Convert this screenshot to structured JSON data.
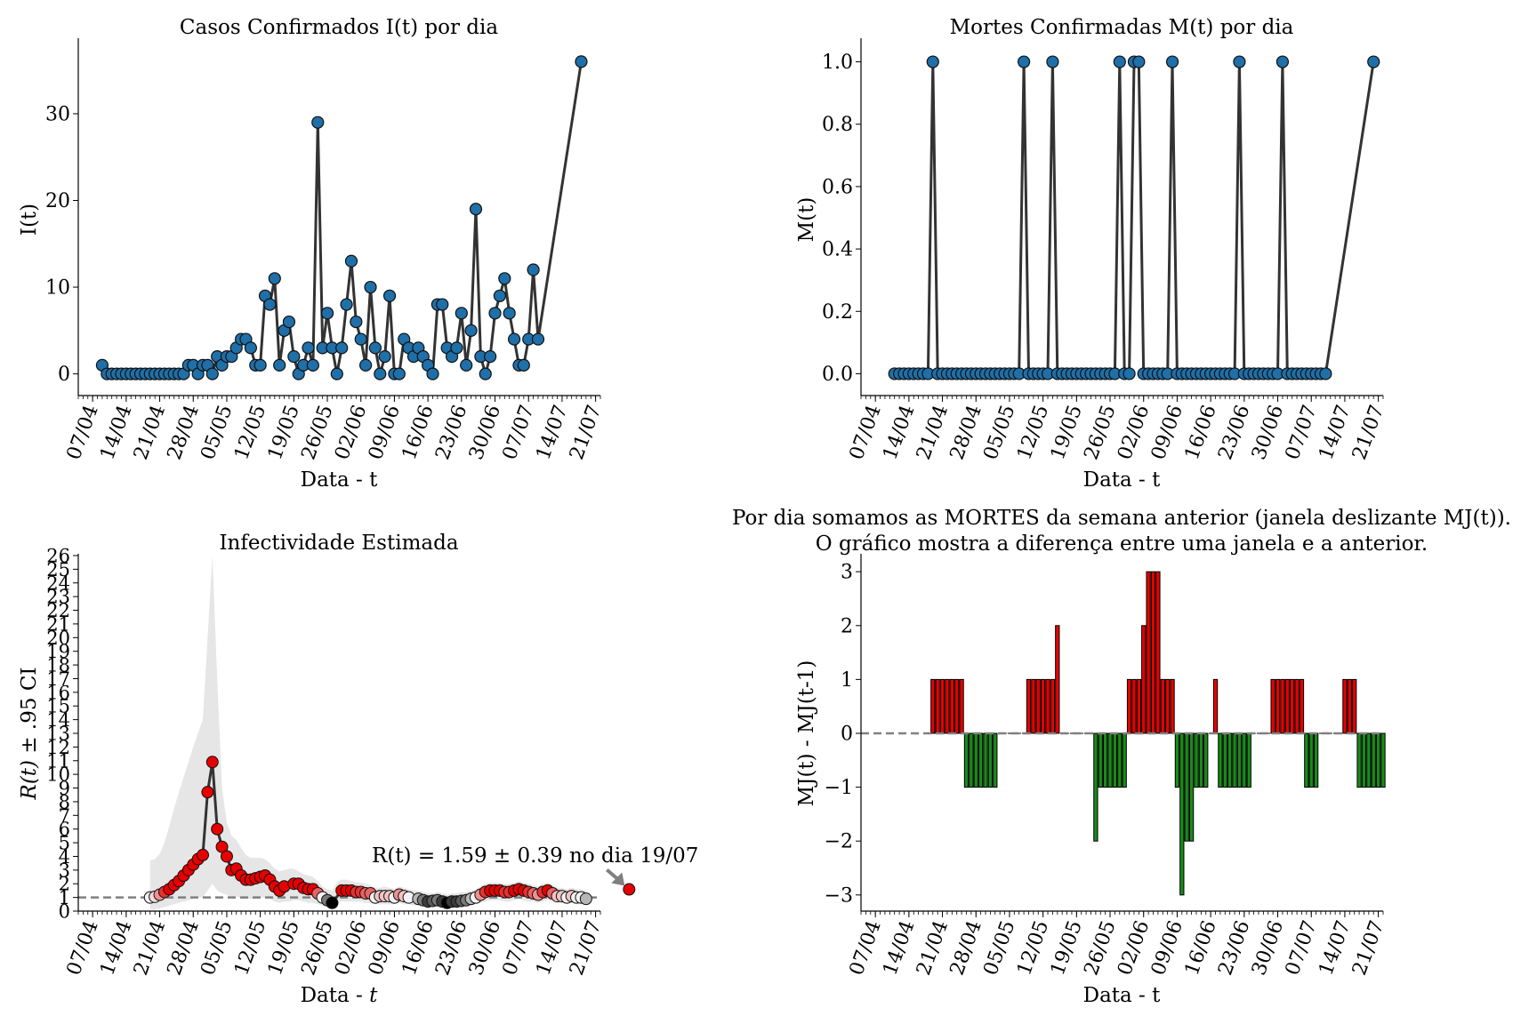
{
  "chart_data": [
    {
      "id": "cases",
      "type": "line",
      "title": "Casos Confirmados I(t) por dia",
      "xlabel": "Data - t",
      "ylabel": "I(t)",
      "x_ticks": [
        "07/04",
        "14/04",
        "21/04",
        "28/04",
        "05/05",
        "12/05",
        "19/05",
        "26/05",
        "02/06",
        "09/06",
        "16/06",
        "23/06",
        "30/06",
        "07/07",
        "14/07",
        "21/07"
      ],
      "x_start": "2020-04-09",
      "x_end": "2020-07-19",
      "y_ticks": [
        0,
        10,
        20,
        30
      ],
      "ylim": [
        -2.5,
        38.5
      ],
      "series": [
        {
          "color": "#1f6fa8",
          "values": [
            1,
            0,
            0,
            0,
            0,
            0,
            0,
            0,
            0,
            0,
            0,
            0,
            0,
            0,
            0,
            0,
            0,
            0,
            1,
            1,
            0,
            1,
            1,
            0,
            2,
            1,
            2,
            2,
            3,
            4,
            4,
            3,
            1,
            1,
            9,
            8,
            11,
            1,
            5,
            6,
            2,
            0,
            1,
            3,
            1,
            29,
            3,
            7,
            3,
            0,
            3,
            8,
            13,
            6,
            4,
            1,
            10,
            3,
            0,
            2,
            9,
            0,
            0,
            4,
            3,
            2,
            3,
            2,
            1,
            0,
            8,
            8,
            3,
            2,
            3,
            7,
            1,
            5,
            19,
            2,
            0,
            2,
            7,
            9,
            11,
            7,
            4,
            1,
            1,
            4,
            12,
            4,
            null,
            null,
            null,
            null,
            null,
            null,
            null,
            null,
            36
          ]
        }
      ]
    },
    {
      "id": "deaths",
      "type": "line",
      "title": "Mortes Confirmadas M(t) por dia",
      "xlabel": "Data - t",
      "ylabel": "M(t)",
      "x_ticks": [
        "07/04",
        "14/04",
        "21/04",
        "28/04",
        "05/05",
        "12/05",
        "19/05",
        "26/05",
        "02/06",
        "09/06",
        "16/06",
        "23/06",
        "30/06",
        "07/07",
        "14/07",
        "21/07"
      ],
      "x_start": "2020-04-11",
      "x_end": "2020-07-19",
      "y_ticks": [
        "0.0",
        "0.2",
        "0.4",
        "0.6",
        "0.8",
        "1.0"
      ],
      "ylim": [
        -0.07,
        1.07
      ],
      "series": [
        {
          "color": "#1f6fa8",
          "values": [
            0,
            0,
            0,
            0,
            0,
            0,
            0,
            0,
            1,
            0,
            0,
            0,
            0,
            0,
            0,
            0,
            0,
            0,
            0,
            0,
            0,
            0,
            0,
            0,
            0,
            0,
            0,
            1,
            0,
            0,
            0,
            0,
            0,
            1,
            0,
            0,
            0,
            0,
            0,
            0,
            0,
            0,
            0,
            0,
            0,
            0,
            0,
            1,
            0,
            0,
            1,
            1,
            0,
            0,
            0,
            0,
            0,
            0,
            1,
            0,
            0,
            0,
            0,
            0,
            0,
            0,
            0,
            0,
            0,
            0,
            0,
            0,
            1,
            0,
            0,
            0,
            0,
            0,
            0,
            0,
            0,
            1,
            0,
            0,
            0,
            0,
            0,
            0,
            0,
            0,
            0,
            null,
            null,
            null,
            null,
            null,
            null,
            null,
            null,
            null,
            1
          ]
        }
      ]
    },
    {
      "id": "rt",
      "type": "scatter",
      "title": "Infectividade Estimada",
      "xlabel": "Data - ",
      "xlabel_italic": "t",
      "ylabel_math": "R(t)",
      "ylabel_rest": " ± .95 CI",
      "x_ticks": [
        "07/04",
        "14/04",
        "21/04",
        "28/04",
        "05/05",
        "12/05",
        "19/05",
        "26/05",
        "02/06",
        "09/06",
        "16/06",
        "23/06",
        "30/06",
        "07/07",
        "14/07",
        "21/07"
      ],
      "x_start": "2020-04-19",
      "x_end": "2020-07-19",
      "y_ticks": [
        0,
        1,
        2,
        3,
        4,
        5,
        6,
        7,
        8,
        9,
        10,
        11,
        12,
        13,
        14,
        15,
        16,
        17,
        18,
        19,
        20,
        21,
        22,
        23,
        24,
        25,
        26
      ],
      "ylim": [
        0,
        26
      ],
      "threshold": 1,
      "annotation": "R(t) = 1.59 ± 0.39 no dia 19/07",
      "values": [
        1.0,
        1.05,
        1.2,
        1.4,
        1.6,
        1.9,
        2.2,
        2.6,
        3.0,
        3.4,
        3.8,
        4.1,
        8.7,
        10.9,
        6.0,
        4.7,
        4.0,
        3.0,
        3.1,
        2.6,
        2.3,
        2.3,
        2.4,
        2.5,
        2.6,
        2.3,
        1.8,
        1.5,
        1.8,
        null,
        2.0,
        2.0,
        1.7,
        1.6,
        1.6,
        1.3,
        1.0,
        0.8,
        0.6,
        null,
        1.5,
        1.5,
        1.5,
        1.4,
        1.4,
        1.3,
        1.3,
        1.0,
        1.1,
        1.1,
        1.1,
        1.0,
        1.2,
        1.1,
        1.0,
        null,
        0.9,
        0.8,
        0.7,
        0.75,
        0.8,
        0.7,
        0.6,
        0.7,
        0.7,
        0.75,
        0.8,
        0.9,
        1.0,
        1.2,
        1.4,
        1.5,
        1.5,
        1.5,
        1.4,
        1.4,
        1.5,
        1.6,
        1.5,
        1.4,
        1.3,
        1.2,
        1.4,
        1.5,
        1.3,
        1.1,
        1.1,
        1.0,
        1.1,
        1.0,
        1.0,
        0.9,
        null,
        null,
        null,
        null,
        null,
        null,
        null,
        null,
        1.59
      ],
      "ci_upper": [
        3.7,
        3.8,
        4.2,
        5.0,
        6.2,
        7.5,
        8.7,
        9.8,
        10.9,
        12.0,
        13.0,
        14.0,
        20.0,
        26.0,
        17.0,
        9.0,
        6.5,
        5.5,
        5.2,
        4.6,
        4.1,
        3.9,
        3.9,
        3.9,
        3.8,
        3.5,
        3.1,
        2.9,
        3.0,
        3.1,
        3.1,
        2.9,
        2.7,
        2.6,
        2.5,
        2.2,
        1.8,
        1.6,
        1.5,
        2.1,
        2.3,
        2.3,
        2.2,
        2.1,
        2.1,
        2.0,
        1.9,
        1.7,
        1.7,
        1.8,
        1.7,
        1.6,
        1.8,
        1.7,
        1.6,
        1.5,
        1.5,
        1.4,
        1.3,
        1.3,
        1.4,
        1.3,
        1.2,
        1.3,
        1.3,
        1.4,
        1.4,
        1.5,
        1.6,
        1.8,
        2.0,
        2.1,
        2.1,
        2.1,
        2.0,
        2.0,
        2.1,
        2.2,
        2.1,
        2.0,
        1.9,
        1.8,
        2.0,
        2.1,
        1.9,
        1.7,
        1.7,
        1.6,
        1.7,
        1.6,
        1.6,
        1.5,
        null,
        null,
        null,
        null,
        null,
        null,
        null,
        null,
        null
      ],
      "ci_lower": [
        0.1,
        0.1,
        0.2,
        0.3,
        0.4,
        0.5,
        0.6,
        0.7,
        0.8,
        0.9,
        1.0,
        1.0,
        1.5,
        2.0,
        1.5,
        1.3,
        1.2,
        1.0,
        1.1,
        0.9,
        0.9,
        0.9,
        0.9,
        1.0,
        1.0,
        0.9,
        0.7,
        0.6,
        0.7,
        0.7,
        0.8,
        0.8,
        0.7,
        0.6,
        0.6,
        0.5,
        0.4,
        0.3,
        0.2,
        0.6,
        0.7,
        0.7,
        0.7,
        0.7,
        0.7,
        0.6,
        0.6,
        0.5,
        0.5,
        0.5,
        0.5,
        0.5,
        0.6,
        0.5,
        0.5,
        0.4,
        0.4,
        0.4,
        0.3,
        0.4,
        0.4,
        0.3,
        0.3,
        0.3,
        0.3,
        0.4,
        0.4,
        0.4,
        0.5,
        0.6,
        0.7,
        0.8,
        0.8,
        0.8,
        0.7,
        0.7,
        0.8,
        0.9,
        0.8,
        0.7,
        0.7,
        0.6,
        0.7,
        0.8,
        0.7,
        0.6,
        0.6,
        0.5,
        0.6,
        0.5,
        0.5,
        0.5,
        null,
        null,
        null,
        null,
        null,
        null,
        null,
        null,
        null
      ],
      "colors": {
        "line": "#333333",
        "ci": "#e6e6e6",
        "threshold": "#808080",
        "arrow": "#808080",
        "scale_low": "#000000",
        "scale_mid": "#f2f2f2",
        "scale_high": "#e60000"
      }
    },
    {
      "id": "deaths-diff",
      "type": "bar",
      "title": "Por dia somamos as MORTES da semana anterior (janela deslizante MJ(t)).",
      "subtitle": "O gráfico mostra a diferença entre uma janela e a anterior.",
      "xlabel": "Data - t",
      "ylabel": "MJ(t) - MJ(t-1)",
      "x_ticks": [
        "07/04",
        "14/04",
        "21/04",
        "28/04",
        "05/05",
        "12/05",
        "19/05",
        "26/05",
        "02/06",
        "09/06",
        "16/06",
        "23/06",
        "30/06",
        "07/07",
        "14/07",
        "21/07"
      ],
      "x_start": "2020-04-19",
      "x_end": "2020-07-09",
      "y_ticks": [
        -3,
        -2,
        -1,
        0,
        1,
        2,
        3
      ],
      "ylim": [
        -3.3,
        3.3
      ],
      "values": [
        1,
        1,
        1,
        1,
        1,
        1,
        1,
        -1,
        -1,
        -1,
        -1,
        -1,
        -1,
        -1,
        0,
        0,
        0,
        0,
        0,
        0,
        1,
        1,
        1,
        1,
        1,
        1,
        2,
        0,
        0,
        0,
        0,
        0,
        0,
        0,
        -2,
        -1,
        -1,
        -1,
        -1,
        -1,
        -1,
        1,
        1,
        1,
        2,
        3,
        3,
        3,
        1,
        1,
        1,
        -1,
        -3,
        -2,
        -2,
        -1,
        -1,
        -1,
        0,
        1,
        -1,
        -1,
        -1,
        -1,
        -1,
        -1,
        -1,
        0,
        0,
        0,
        0,
        1,
        1,
        1,
        1,
        1,
        1,
        1,
        -1,
        -1,
        -1,
        0,
        0,
        0,
        0,
        0,
        1,
        1,
        1,
        -1,
        -1,
        -1,
        -1,
        -1,
        -1
      ],
      "colors": {
        "positive": "#e60000",
        "negative": "#1a8a1a",
        "zero_line": "#808080"
      }
    }
  ]
}
